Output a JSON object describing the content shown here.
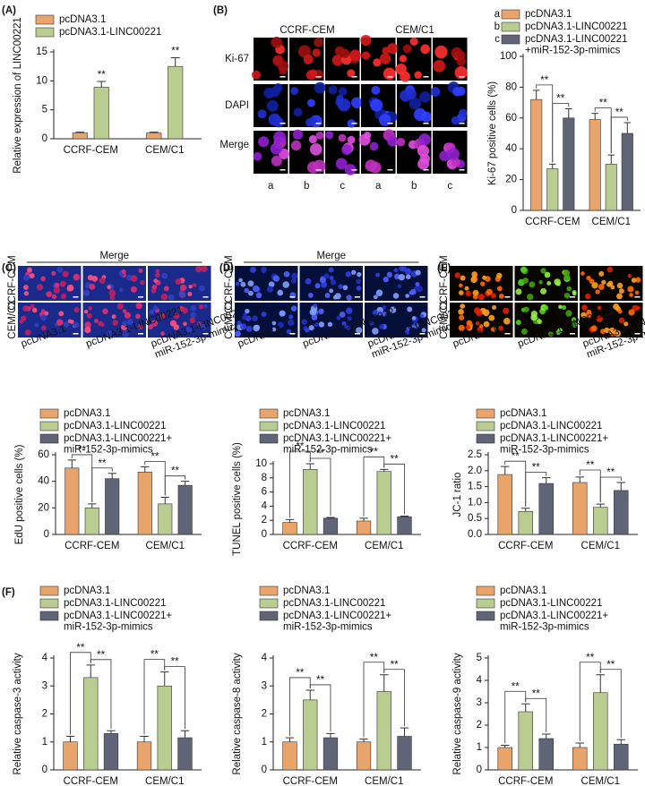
{
  "panel_labels": [
    "(A)",
    "(B)",
    "(C)",
    "(D)",
    "(E)",
    "(F)"
  ],
  "image_panels": {
    "B": {
      "columns": [
        "CCRF-CEM",
        "CEM/C1"
      ],
      "rows": [
        "Ki-67",
        "DAPI",
        "Merge"
      ],
      "letters": [
        "a",
        "b",
        "c",
        "a",
        "b",
        "c"
      ]
    },
    "C": {
      "header": "Merge",
      "rows": [
        "CCRF-CEM",
        "CEM/C1"
      ],
      "columns": [
        "pcDNA3.1",
        "pcDNA3.1-LINC00221",
        "pcDNA3.1-LINC00221+\nmiR-152-3p-mimics"
      ]
    },
    "D": {
      "header": "Merge",
      "rows": [
        "CCRF-CEM",
        "CEM/C1"
      ],
      "columns": [
        "pcDNA3.1",
        "pcDNA3.1-LINC00221",
        "pcDNA3.1-LINC00221+\nmiR-152-3p-mimics"
      ]
    },
    "E": {
      "rows": [
        "CCRF-CEM",
        "CEM/C1"
      ],
      "columns": [
        "pcDNA3.1",
        "pcDNA3.1-LINC00221",
        "pcDNA3.1-LINC00221+\nmiR-152-3p-mimics"
      ]
    }
  },
  "chart_data": [
    {
      "type": "bar",
      "y_label": "Relative expression of LINC00221",
      "categories": [
        "CCRF-CEM",
        "CEM/C1"
      ],
      "ylim": [
        0,
        15
      ],
      "yticks": [
        0,
        5,
        10,
        15
      ],
      "series": [
        {
          "name": "pcDNA3.1",
          "color": "#e9a46c",
          "values": [
            1,
            1
          ],
          "errors": [
            0.15,
            0.15
          ]
        },
        {
          "name": "pcDNA3.1-LINC00221",
          "color": "#b8cd8f",
          "values": [
            8.9,
            12.5
          ],
          "errors": [
            1.0,
            1.5
          ]
        }
      ],
      "significance": [
        [
          "**"
        ],
        [
          "**"
        ]
      ]
    },
    {
      "type": "bar",
      "y_label": "Ki-67 positive cells (%)",
      "categories": [
        "CCRF-CEM",
        "CEM/C1"
      ],
      "ylim": [
        0,
        100
      ],
      "yticks": [
        0,
        20,
        40,
        60,
        80,
        100
      ],
      "legend_keys": [
        "a",
        "b",
        "c"
      ],
      "series": [
        {
          "name": "pcDNA3.1",
          "color": "#e9a46c",
          "values": [
            72,
            59
          ],
          "errors": [
            6,
            4
          ]
        },
        {
          "name": "pcDNA3.1-LINC00221",
          "color": "#b8cd8f",
          "values": [
            27,
            30
          ],
          "errors": [
            3,
            6
          ]
        },
        {
          "name": "pcDNA3.1-LINC00221\n+miR-152-3p-mimics",
          "color": "#5f6576",
          "values": [
            60,
            50
          ],
          "errors": [
            6,
            7
          ]
        }
      ],
      "significance": [
        [
          "**",
          "**"
        ],
        [
          "**",
          "**"
        ]
      ]
    },
    {
      "type": "bar",
      "y_label": "EdU positive cells (%)",
      "categories": [
        "CCRF-CEM",
        "CEM/C1"
      ],
      "ylim": [
        0,
        60
      ],
      "yticks": [
        0,
        20,
        40,
        60
      ],
      "series": [
        {
          "name": "pcDNA3.1",
          "color": "#e9a46c",
          "values": [
            50,
            47
          ],
          "errors": [
            6,
            4
          ]
        },
        {
          "name": "pcDNA3.1-LINC00221",
          "color": "#b8cd8f",
          "values": [
            20,
            23
          ],
          "errors": [
            3,
            5
          ]
        },
        {
          "name": "pcDNA3.1-LINC00221+\nmiR-152-3p-mimics",
          "color": "#5f6576",
          "values": [
            42,
            37
          ],
          "errors": [
            4,
            3
          ]
        }
      ],
      "significance": [
        [
          "**",
          "**"
        ],
        [
          "**",
          "**"
        ]
      ]
    },
    {
      "type": "bar",
      "y_label": "TUNEL positive cells (%)",
      "categories": [
        "CCRF-CEM",
        "CEM/C1"
      ],
      "ylim": [
        0,
        10
      ],
      "yticks": [
        0,
        2,
        4,
        6,
        8,
        10
      ],
      "series": [
        {
          "name": "pcDNA3.1",
          "color": "#e9a46c",
          "values": [
            1.7,
            1.9
          ],
          "errors": [
            0.4,
            0.4
          ]
        },
        {
          "name": "pcDNA3.1-LINC00221",
          "color": "#b8cd8f",
          "values": [
            9.2,
            8.9
          ],
          "errors": [
            0.8,
            0.3
          ]
        },
        {
          "name": "pcDNA3.1-LINC00221+\nmiR-152-3p-mimics",
          "color": "#5f6576",
          "values": [
            2.3,
            2.5
          ],
          "errors": [
            0.1,
            0.1
          ]
        }
      ],
      "significance": [
        [
          "**",
          "**"
        ],
        [
          "**",
          "**"
        ]
      ]
    },
    {
      "type": "bar",
      "y_label": "JC-1 ratio",
      "categories": [
        "CCRF-CEM",
        "CEM/C1"
      ],
      "ylim": [
        0,
        2.5
      ],
      "yticks": [
        {
          "value": 0,
          "label": "0.0"
        },
        {
          "value": 0.5,
          "label": "0.5"
        },
        {
          "value": 1,
          "label": "1.0"
        },
        {
          "value": 1.5,
          "label": "1.5"
        },
        {
          "value": 2,
          "label": "2.0"
        },
        {
          "value": 2.5,
          "label": "2.5"
        }
      ],
      "series": [
        {
          "name": "pcDNA3.1",
          "color": "#e9a46c",
          "values": [
            1.88,
            1.63
          ],
          "errors": [
            0.25,
            0.17
          ]
        },
        {
          "name": "pcDNA3.1-LINC00221",
          "color": "#b8cd8f",
          "values": [
            0.72,
            0.85
          ],
          "errors": [
            0.1,
            0.1
          ]
        },
        {
          "name": "pcDNA3.1-LINC00221+\nmiR-152-3p-mimics",
          "color": "#5f6576",
          "values": [
            1.6,
            1.38
          ],
          "errors": [
            0.18,
            0.25
          ]
        }
      ],
      "significance": [
        [
          "**",
          "**"
        ],
        [
          "**",
          "**"
        ]
      ]
    },
    {
      "type": "bar",
      "y_label": "Relative caspase-3 activity",
      "categories": [
        "CCRF-CEM",
        "CEM/C1"
      ],
      "ylim": [
        0,
        4
      ],
      "yticks": [
        0,
        1,
        2,
        3,
        4
      ],
      "series": [
        {
          "name": "pcDNA3.1",
          "color": "#e9a46c",
          "values": [
            1.0,
            1.0
          ],
          "errors": [
            0.2,
            0.2
          ]
        },
        {
          "name": "pcDNA3.1-LINC00221",
          "color": "#b8cd8f",
          "values": [
            3.3,
            3.0
          ],
          "errors": [
            0.45,
            0.5
          ]
        },
        {
          "name": "pcDNA3.1-LINC00221+\nmiR-152-3p-mimics",
          "color": "#5f6576",
          "values": [
            1.3,
            1.15
          ],
          "errors": [
            0.1,
            0.25
          ]
        }
      ],
      "significance": [
        [
          "**",
          "**"
        ],
        [
          "**",
          "**"
        ]
      ]
    },
    {
      "type": "bar",
      "y_label": "Relative caspase-8 activity",
      "categories": [
        "CCRF-CEM",
        "CEM/C1"
      ],
      "ylim": [
        0,
        4
      ],
      "yticks": [
        0,
        1,
        2,
        3,
        4
      ],
      "series": [
        {
          "name": "pcDNA3.1",
          "color": "#e9a46c",
          "values": [
            1.0,
            1.0
          ],
          "errors": [
            0.15,
            0.1
          ]
        },
        {
          "name": "pcDNA3.1-LINC00221",
          "color": "#b8cd8f",
          "values": [
            2.5,
            2.8
          ],
          "errors": [
            0.35,
            0.6
          ]
        },
        {
          "name": "pcDNA3.1-LINC00221+\nmiR-152-3p-mimics",
          "color": "#5f6576",
          "values": [
            1.15,
            1.2
          ],
          "errors": [
            0.15,
            0.3
          ]
        }
      ],
      "significance": [
        [
          "**",
          "**"
        ],
        [
          "**",
          "**"
        ]
      ]
    },
    {
      "type": "bar",
      "y_label": "Relative caspase-9 activity",
      "categories": [
        "CCRF-CEM",
        "CEM/C1"
      ],
      "ylim": [
        0,
        5
      ],
      "yticks": [
        0,
        1,
        2,
        3,
        4,
        5
      ],
      "series": [
        {
          "name": "pcDNA3.1",
          "color": "#e9a46c",
          "values": [
            1.0,
            1.0
          ],
          "errors": [
            0.1,
            0.2
          ]
        },
        {
          "name": "pcDNA3.1-LINC00221",
          "color": "#b8cd8f",
          "values": [
            2.6,
            3.45
          ],
          "errors": [
            0.35,
            0.8
          ]
        },
        {
          "name": "pcDNA3.1-LINC00221+\nmiR-152-3p-mimics",
          "color": "#5f6576",
          "values": [
            1.4,
            1.15
          ],
          "errors": [
            0.2,
            0.2
          ]
        }
      ],
      "significance": [
        [
          "**",
          "**"
        ],
        [
          "**",
          "**"
        ]
      ]
    }
  ]
}
